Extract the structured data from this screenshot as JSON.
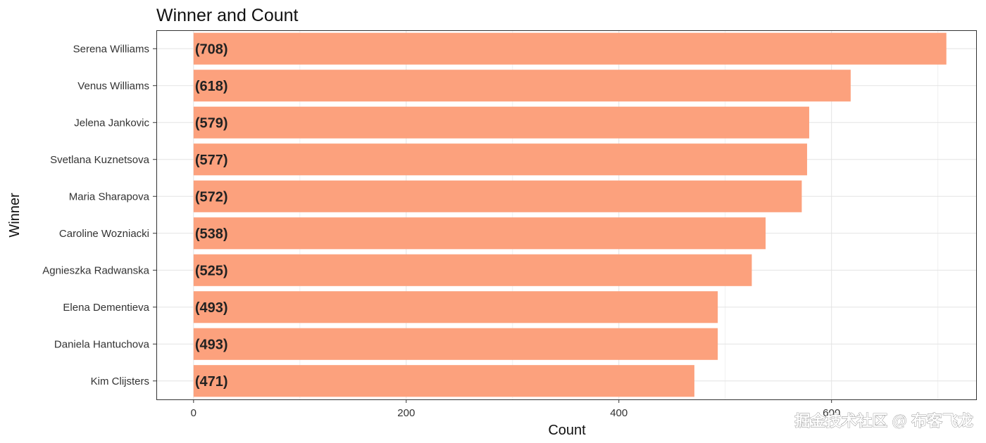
{
  "chart_data": {
    "type": "bar",
    "orientation": "horizontal",
    "title": "Winner and Count",
    "xlabel": "Count",
    "ylabel": "Winner",
    "categories": [
      "Serena Williams",
      "Venus Williams",
      "Jelena Jankovic",
      "Svetlana Kuznetsova",
      "Maria Sharapova",
      "Caroline Wozniacki",
      "Agnieszka Radwanska",
      "Elena Dementieva",
      "Daniela Hantuchova",
      "Kim Clijsters"
    ],
    "values": [
      708,
      618,
      579,
      577,
      572,
      538,
      525,
      493,
      493,
      471
    ],
    "data_labels": [
      "(708)",
      "(618)",
      "(579)",
      "(577)",
      "(572)",
      "(538)",
      "(525)",
      "(493)",
      "(493)",
      "(471)"
    ],
    "x_ticks": [
      "0",
      "200",
      "400",
      "600"
    ],
    "xlim": [
      -35,
      736
    ],
    "grid": true,
    "bar_color": "#fca17d",
    "legend": "none"
  },
  "watermark": "掘金技术社区 @ 布客飞龙"
}
